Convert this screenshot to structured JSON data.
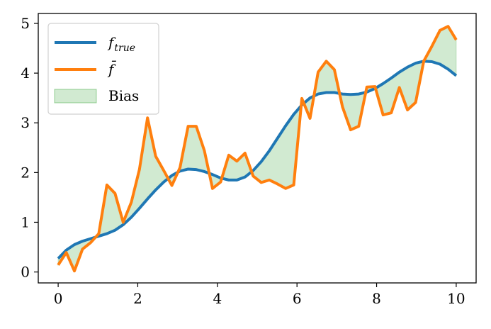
{
  "chart_data": {
    "type": "line",
    "x": [
      0,
      0.204,
      0.408,
      0.612,
      0.816,
      1.02,
      1.224,
      1.429,
      1.633,
      1.837,
      2.041,
      2.245,
      2.449,
      2.653,
      2.857,
      3.061,
      3.265,
      3.469,
      3.673,
      3.878,
      4.082,
      4.286,
      4.49,
      4.694,
      4.898,
      5.102,
      5.306,
      5.51,
      5.714,
      5.918,
      6.122,
      6.327,
      6.531,
      6.735,
      6.939,
      7.143,
      7.347,
      7.551,
      7.755,
      7.959,
      8.163,
      8.367,
      8.571,
      8.776,
      8.98,
      9.184,
      9.388,
      9.592,
      9.796,
      10
    ],
    "series": [
      {
        "name": "f_true",
        "color": "#1f77b4",
        "values": [
          0.27,
          0.44,
          0.55,
          0.62,
          0.67,
          0.72,
          0.77,
          0.84,
          0.95,
          1.1,
          1.28,
          1.47,
          1.65,
          1.81,
          1.94,
          2.03,
          2.07,
          2.06,
          2.02,
          1.96,
          1.89,
          1.85,
          1.85,
          1.91,
          2.04,
          2.22,
          2.44,
          2.69,
          2.94,
          3.17,
          3.36,
          3.5,
          3.58,
          3.61,
          3.61,
          3.58,
          3.57,
          3.58,
          3.62,
          3.69,
          3.79,
          3.9,
          4.02,
          4.12,
          4.2,
          4.24,
          4.23,
          4.18,
          4.08,
          3.95
        ]
      },
      {
        "name": "f_bar",
        "color": "#ff7f0e",
        "values": [
          0.14,
          0.39,
          0.02,
          0.46,
          0.59,
          0.77,
          1.75,
          1.58,
          1.0,
          1.4,
          2.06,
          3.1,
          2.33,
          2.04,
          1.74,
          2.1,
          2.93,
          2.93,
          2.44,
          1.68,
          1.81,
          2.35,
          2.23,
          2.39,
          1.93,
          1.8,
          1.85,
          1.77,
          1.68,
          1.75,
          3.49,
          3.09,
          4.02,
          4.24,
          4.07,
          3.32,
          2.86,
          2.93,
          3.72,
          3.73,
          3.16,
          3.2,
          3.71,
          3.26,
          3.41,
          4.24,
          4.54,
          4.86,
          4.94,
          4.67
        ]
      }
    ],
    "fill": {
      "name": "Bias",
      "between": [
        "f_true",
        "f_bar"
      ],
      "color": "#2ca02c",
      "alpha": 0.22
    },
    "xlim": [
      -0.5,
      10.5
    ],
    "ylim": [
      -0.22,
      5.2
    ],
    "xticks": [
      0,
      2,
      4,
      6,
      8,
      10
    ],
    "yticks": [
      0,
      1,
      2,
      3,
      4,
      5
    ],
    "grid": false,
    "legend": {
      "position": "top-left",
      "entries": [
        {
          "label_main": "f",
          "label_sub": "true",
          "kind": "line",
          "series": "f_true"
        },
        {
          "label_main": "f̄",
          "label_sub": "",
          "kind": "line",
          "series": "f_bar"
        },
        {
          "label_main": "Bias",
          "label_sub": "",
          "kind": "patch",
          "series": "Bias"
        }
      ]
    },
    "title": "",
    "xlabel": "",
    "ylabel": ""
  }
}
